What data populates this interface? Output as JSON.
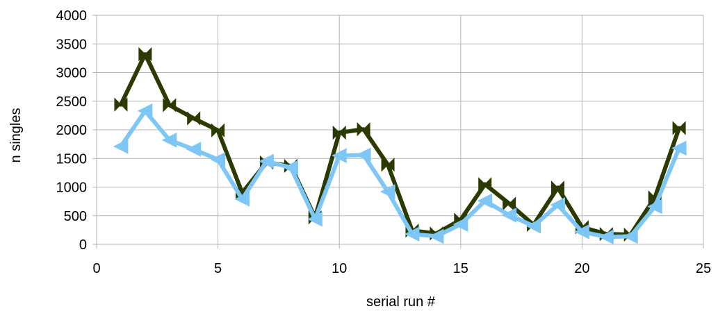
{
  "chart_data": {
    "type": "line",
    "title": "",
    "xlabel": "serial run #",
    "ylabel": "n singles",
    "xlim": [
      0,
      25
    ],
    "ylim": [
      0,
      4000
    ],
    "xticks": [
      0,
      5,
      10,
      15,
      20,
      25
    ],
    "yticks": [
      0,
      500,
      1000,
      1500,
      2000,
      2500,
      3000,
      3500,
      4000
    ],
    "grid": true,
    "legend": "none",
    "x": [
      1,
      2,
      3,
      4,
      5,
      6,
      7,
      8,
      9,
      10,
      11,
      12,
      13,
      14,
      15,
      16,
      17,
      18,
      19,
      20,
      21,
      22,
      23,
      24
    ],
    "series": [
      {
        "color": "#2a3a00",
        "marker": "bowtie",
        "values": [
          2440,
          3320,
          2430,
          2200,
          1990,
          900,
          1430,
          1370,
          470,
          1950,
          2010,
          1390,
          240,
          190,
          430,
          1050,
          710,
          340,
          990,
          300,
          180,
          170,
          820,
          2030
        ]
      },
      {
        "color": "#7ec6f5",
        "marker": "triangle-left",
        "values": [
          1710,
          2330,
          1820,
          1660,
          1480,
          790,
          1450,
          1340,
          440,
          1550,
          1560,
          920,
          180,
          140,
          350,
          760,
          510,
          320,
          690,
          220,
          130,
          140,
          660,
          1680
        ]
      }
    ]
  }
}
